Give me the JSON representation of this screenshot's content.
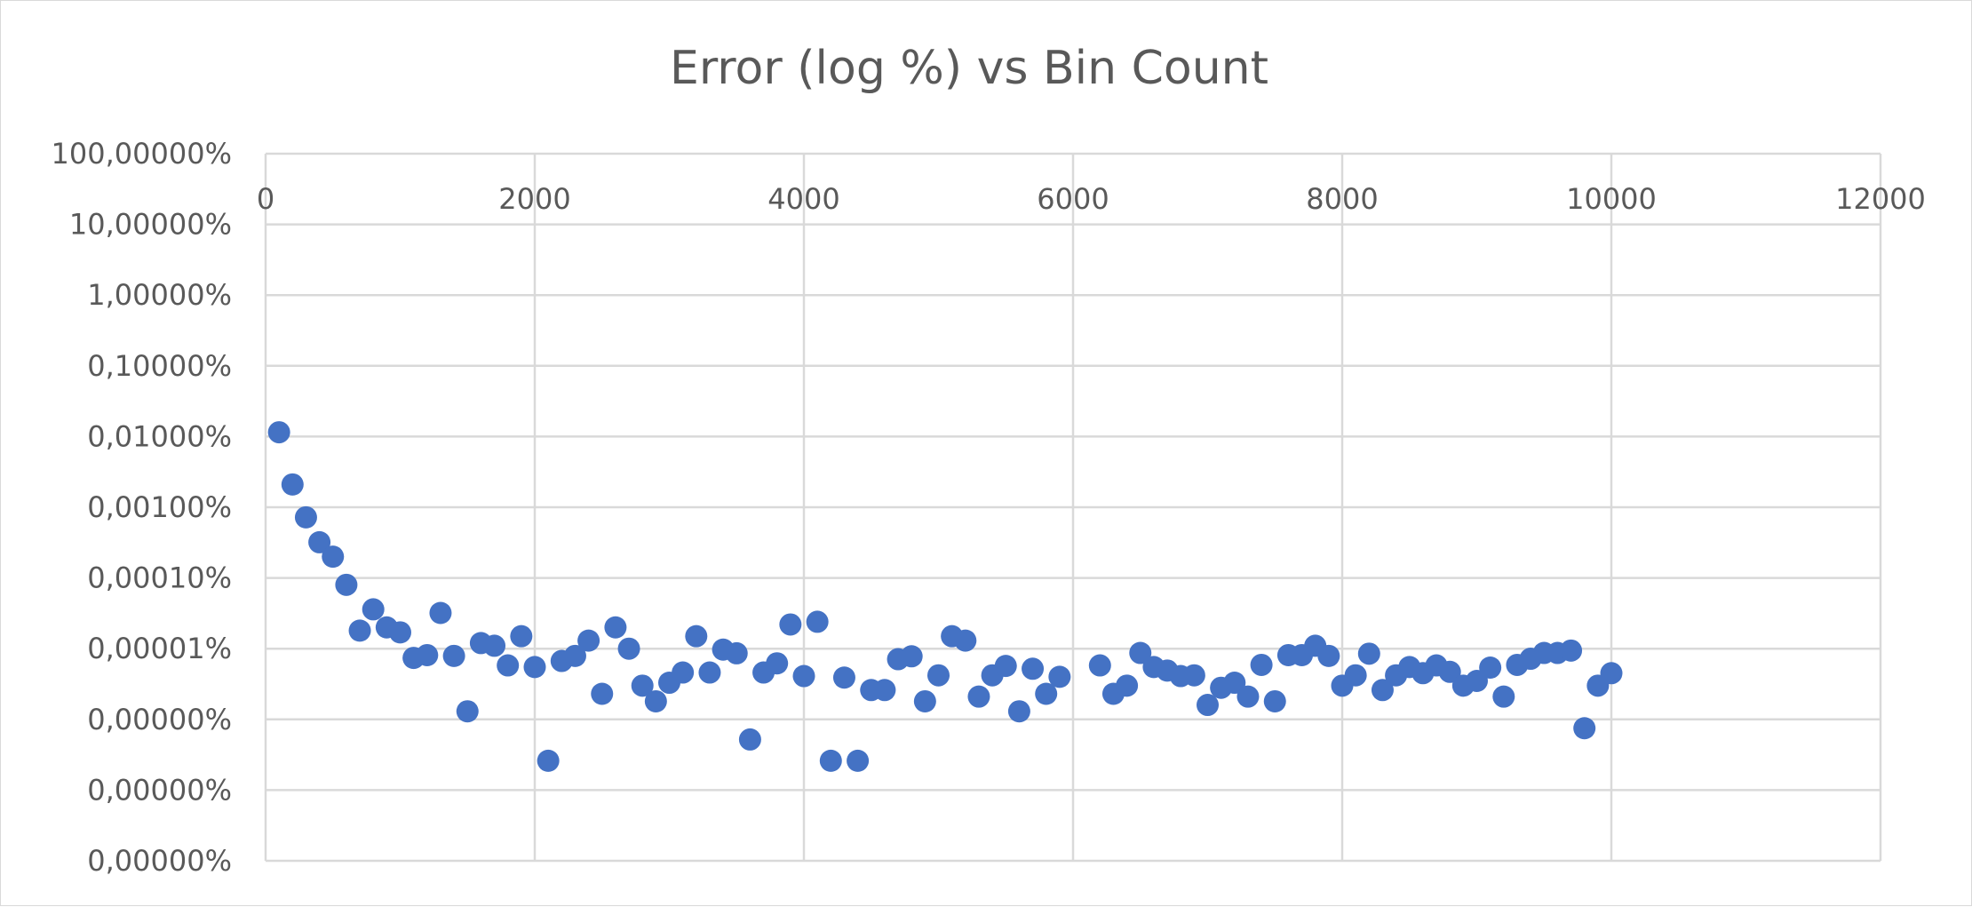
{
  "chart_data": {
    "type": "scatter",
    "title": "Error (log %) vs Bin Count",
    "xlabel": "",
    "ylabel": "",
    "x_scale": "linear",
    "y_scale": "log",
    "xlim": [
      0,
      12000
    ],
    "ylim": [
      1e-08,
      100
    ],
    "x_ticks": [
      0,
      2000,
      4000,
      6000,
      8000,
      10000,
      12000
    ],
    "x_tick_labels": [
      "0",
      "2000",
      "4000",
      "6000",
      "8000",
      "10000",
      "12000"
    ],
    "x_axis_position": "top",
    "y_tick_values": [
      100,
      10,
      1,
      0.1,
      0.01,
      0.001,
      0.0001,
      1e-05,
      1e-06,
      1e-07,
      1e-08
    ],
    "y_tick_labels": [
      "100,00000%",
      "10,00000%",
      "1,00000%",
      "0,10000%",
      "0,01000%",
      "0,00100%",
      "0,00010%",
      "0,00001%",
      "0,00000%",
      "0,00000%",
      "0,00000%"
    ],
    "grid": true,
    "legend": "none",
    "marker_color": "#4472c4",
    "points": [
      {
        "x": 100,
        "y": 0.0115
      },
      {
        "x": 200,
        "y": 0.0021
      },
      {
        "x": 300,
        "y": 0.00072
      },
      {
        "x": 400,
        "y": 0.00032
      },
      {
        "x": 500,
        "y": 0.0002
      },
      {
        "x": 600,
        "y": 8e-05
      },
      {
        "x": 700,
        "y": 1.8e-05
      },
      {
        "x": 800,
        "y": 3.6e-05
      },
      {
        "x": 900,
        "y": 2e-05
      },
      {
        "x": 1000,
        "y": 1.7e-05
      },
      {
        "x": 1100,
        "y": 7.4e-06
      },
      {
        "x": 1200,
        "y": 8.1e-06
      },
      {
        "x": 1300,
        "y": 3.2e-05
      },
      {
        "x": 1400,
        "y": 7.9e-06
      },
      {
        "x": 1500,
        "y": 1.3e-06
      },
      {
        "x": 1600,
        "y": 1.2e-05
      },
      {
        "x": 1700,
        "y": 1.1e-05
      },
      {
        "x": 1800,
        "y": 5.8e-06
      },
      {
        "x": 1900,
        "y": 1.5e-05
      },
      {
        "x": 2000,
        "y": 5.5e-06
      },
      {
        "x": 2100,
        "y": 2.6e-07
      },
      {
        "x": 2200,
        "y": 6.7e-06
      },
      {
        "x": 2300,
        "y": 7.9e-06
      },
      {
        "x": 2400,
        "y": 1.3e-05
      },
      {
        "x": 2500,
        "y": 2.3e-06
      },
      {
        "x": 2600,
        "y": 2e-05
      },
      {
        "x": 2700,
        "y": 1e-05
      },
      {
        "x": 2800,
        "y": 3e-06
      },
      {
        "x": 2900,
        "y": 1.8e-06
      },
      {
        "x": 3000,
        "y": 3.3e-06
      },
      {
        "x": 3100,
        "y": 4.6e-06
      },
      {
        "x": 3200,
        "y": 1.5e-05
      },
      {
        "x": 3300,
        "y": 4.6e-06
      },
      {
        "x": 3400,
        "y": 9.7e-06
      },
      {
        "x": 3500,
        "y": 8.6e-06
      },
      {
        "x": 3600,
        "y": 5.2e-07
      },
      {
        "x": 3700,
        "y": 4.6e-06
      },
      {
        "x": 3800,
        "y": 6.2e-06
      },
      {
        "x": 3900,
        "y": 2.2e-05
      },
      {
        "x": 4000,
        "y": 4.1e-06
      },
      {
        "x": 4100,
        "y": 2.4e-05
      },
      {
        "x": 4200,
        "y": 2.6e-07
      },
      {
        "x": 4300,
        "y": 3.9e-06
      },
      {
        "x": 4400,
        "y": 2.6e-07
      },
      {
        "x": 4500,
        "y": 2.6e-06
      },
      {
        "x": 4600,
        "y": 2.6e-06
      },
      {
        "x": 4700,
        "y": 7.1e-06
      },
      {
        "x": 4800,
        "y": 7.8e-06
      },
      {
        "x": 4900,
        "y": 1.8e-06
      },
      {
        "x": 5000,
        "y": 4.2e-06
      },
      {
        "x": 5100,
        "y": 1.5e-05
      },
      {
        "x": 5200,
        "y": 1.3e-05
      },
      {
        "x": 5300,
        "y": 2.1e-06
      },
      {
        "x": 5400,
        "y": 4.2e-06
      },
      {
        "x": 5500,
        "y": 5.7e-06
      },
      {
        "x": 5600,
        "y": 1.3e-06
      },
      {
        "x": 5700,
        "y": 5.2e-06
      },
      {
        "x": 5800,
        "y": 2.3e-06
      },
      {
        "x": 5900,
        "y": 4e-06
      },
      {
        "x": 6200,
        "y": 5.8e-06
      },
      {
        "x": 6300,
        "y": 2.3e-06
      },
      {
        "x": 6400,
        "y": 3e-06
      },
      {
        "x": 6500,
        "y": 8.7e-06
      },
      {
        "x": 6600,
        "y": 5.5e-06
      },
      {
        "x": 6700,
        "y": 4.9e-06
      },
      {
        "x": 6800,
        "y": 4.1e-06
      },
      {
        "x": 6900,
        "y": 4.2e-06
      },
      {
        "x": 7000,
        "y": 1.6e-06
      },
      {
        "x": 7100,
        "y": 2.8e-06
      },
      {
        "x": 7200,
        "y": 3.3e-06
      },
      {
        "x": 7300,
        "y": 2.1e-06
      },
      {
        "x": 7400,
        "y": 5.9e-06
      },
      {
        "x": 7500,
        "y": 1.8e-06
      },
      {
        "x": 7600,
        "y": 8.1e-06
      },
      {
        "x": 7700,
        "y": 8.1e-06
      },
      {
        "x": 7800,
        "y": 1.1e-05
      },
      {
        "x": 7900,
        "y": 7.9e-06
      },
      {
        "x": 8000,
        "y": 3e-06
      },
      {
        "x": 8100,
        "y": 4.2e-06
      },
      {
        "x": 8200,
        "y": 8.5e-06
      },
      {
        "x": 8300,
        "y": 2.6e-06
      },
      {
        "x": 8400,
        "y": 4.2e-06
      },
      {
        "x": 8500,
        "y": 5.5e-06
      },
      {
        "x": 8600,
        "y": 4.5e-06
      },
      {
        "x": 8700,
        "y": 5.8e-06
      },
      {
        "x": 8800,
        "y": 4.7e-06
      },
      {
        "x": 8900,
        "y": 3e-06
      },
      {
        "x": 9000,
        "y": 3.5e-06
      },
      {
        "x": 9100,
        "y": 5.4e-06
      },
      {
        "x": 9200,
        "y": 2.1e-06
      },
      {
        "x": 9300,
        "y": 5.9e-06
      },
      {
        "x": 9400,
        "y": 7.2e-06
      },
      {
        "x": 9500,
        "y": 8.7e-06
      },
      {
        "x": 9600,
        "y": 8.7e-06
      },
      {
        "x": 9700,
        "y": 9.4e-06
      },
      {
        "x": 9800,
        "y": 7.5e-07
      },
      {
        "x": 9900,
        "y": 3e-06
      },
      {
        "x": 10000,
        "y": 4.5e-06
      }
    ]
  }
}
